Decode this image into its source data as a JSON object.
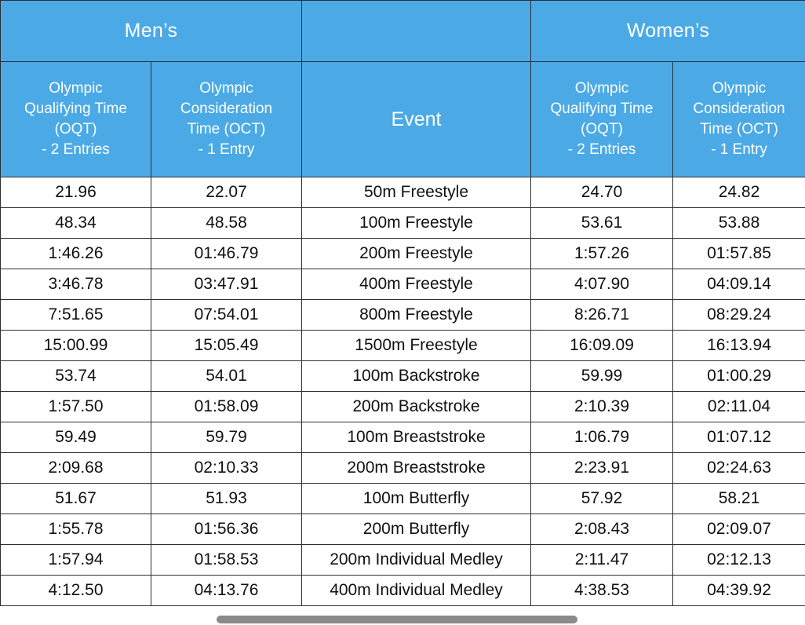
{
  "header": {
    "mens": "Men’s",
    "womens": "Women’s",
    "oqt_lines": [
      "Olympic",
      "Qualifying Time",
      "(OQT)",
      "- 2 Entries"
    ],
    "oct_lines": [
      "Olympic",
      "Consideration",
      "Time (OCT)",
      "- 1 Entry"
    ],
    "event": "Event"
  },
  "rows": [
    [
      "21.96",
      "22.07",
      "50m Freestyle",
      "24.70",
      "24.82"
    ],
    [
      "48.34",
      "48.58",
      "100m Freestyle",
      "53.61",
      "53.88"
    ],
    [
      "1:46.26",
      "01:46.79",
      "200m Freestyle",
      "1:57.26",
      "01:57.85"
    ],
    [
      "3:46.78",
      "03:47.91",
      "400m Freestyle",
      "4:07.90",
      "04:09.14"
    ],
    [
      "7:51.65",
      "07:54.01",
      "800m Freestyle",
      "8:26.71",
      "08:29.24"
    ],
    [
      "15:00.99",
      "15:05.49",
      "1500m Freestyle",
      "16:09.09",
      "16:13.94"
    ],
    [
      "53.74",
      "54.01",
      "100m Backstroke",
      "59.99",
      "01:00.29"
    ],
    [
      "1:57.50",
      "01:58.09",
      "200m Backstroke",
      "2:10.39",
      "02:11.04"
    ],
    [
      "59.49",
      "59.79",
      "100m Breaststroke",
      "1:06.79",
      "01:07.12"
    ],
    [
      "2:09.68",
      "02:10.33",
      "200m Breaststroke",
      "2:23.91",
      "02:24.63"
    ],
    [
      "51.67",
      "51.93",
      "100m Butterfly",
      "57.92",
      "58.21"
    ],
    [
      "1:55.78",
      "01:56.36",
      "200m Butterfly",
      "2:08.43",
      "02:09.07"
    ],
    [
      "1:57.94",
      "01:58.53",
      "200m Individual Medley",
      "2:11.47",
      "02:12.13"
    ],
    [
      "4:12.50",
      "04:13.76",
      "400m Individual Medley",
      "4:38.53",
      "04:39.92"
    ]
  ],
  "colors": {
    "header_bg": "#4baae6",
    "header_text": "#ffffff",
    "border": "#2b2f36"
  }
}
